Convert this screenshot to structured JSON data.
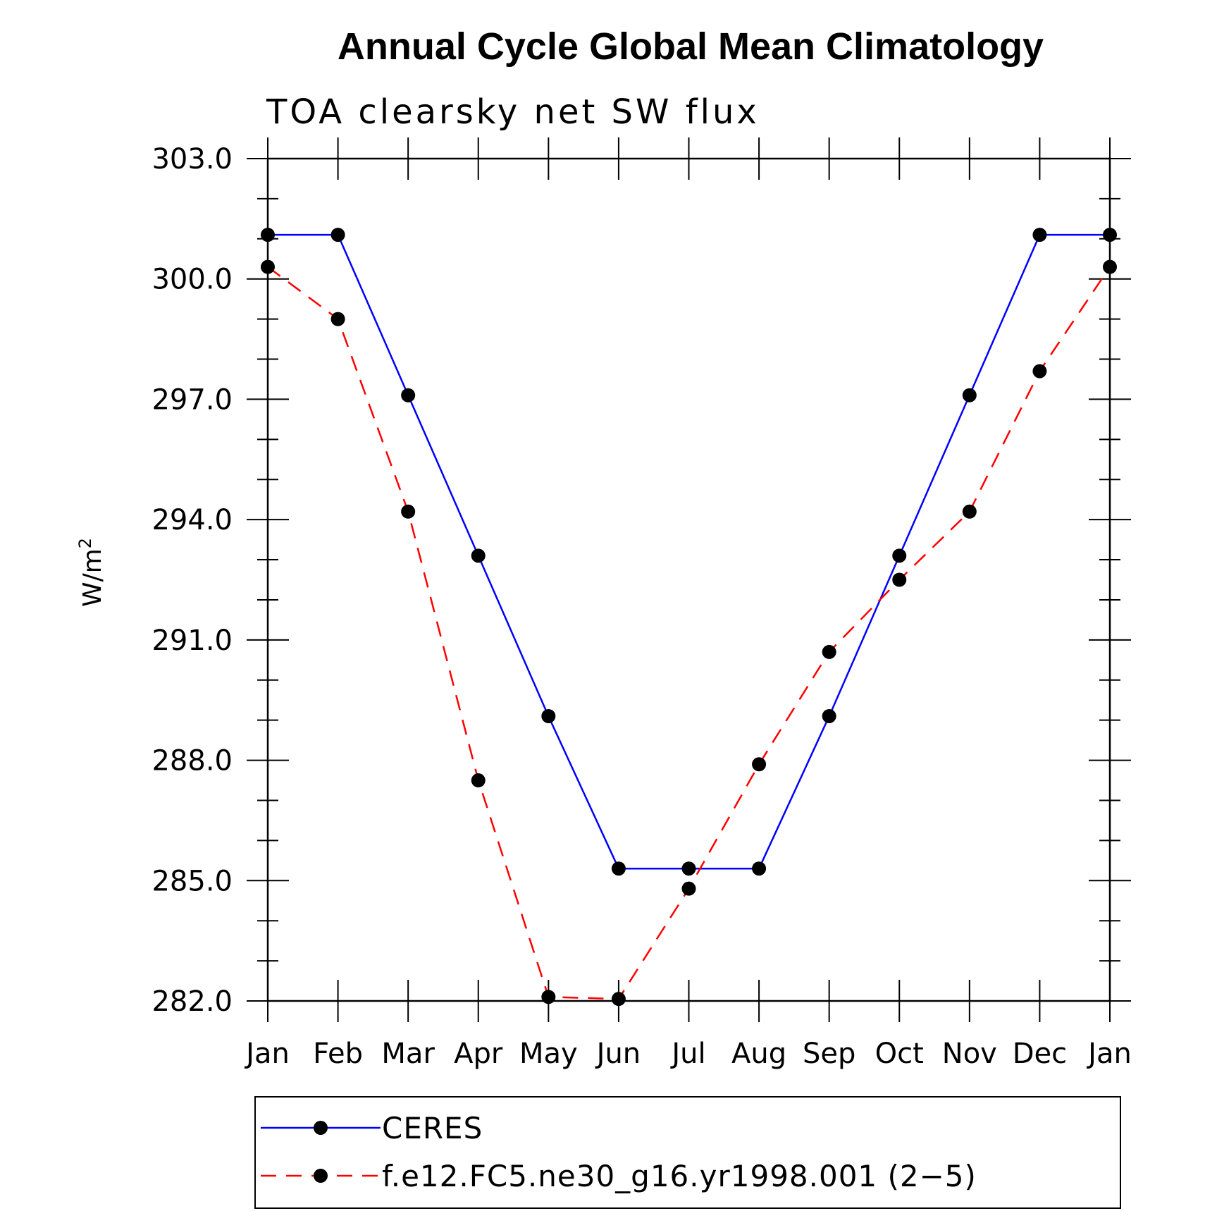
{
  "chart_data": {
    "type": "line",
    "title": "Annual Cycle Global Mean Climatology",
    "subtitle": "TOA clearsky net SW flux",
    "ylabel": "W/m",
    "ylabel_sup": "2",
    "xlabel": "",
    "categories": [
      "Jan",
      "Feb",
      "Mar",
      "Apr",
      "May",
      "Jun",
      "Jul",
      "Aug",
      "Sep",
      "Oct",
      "Nov",
      "Dec",
      "Jan"
    ],
    "ylim": [
      282.0,
      303.0
    ],
    "yticks": [
      "282.0",
      "285.0",
      "288.0",
      "291.0",
      "294.0",
      "297.0",
      "300.0",
      "303.0"
    ],
    "ytick_values": [
      282,
      285,
      288,
      291,
      294,
      297,
      300,
      303
    ],
    "grid": false,
    "legend_position": "bottom",
    "series": [
      {
        "name": "CERES",
        "color": "#0000ff",
        "dash": "solid",
        "marker": "filled-circle",
        "values": [
          301.1,
          301.1,
          297.1,
          293.1,
          289.1,
          285.3,
          285.3,
          285.3,
          289.1,
          293.1,
          297.1,
          301.1,
          301.1
        ]
      },
      {
        "name": "f.e12.FC5.ne30_g16.yr1998.001 (2−5)",
        "color": "#ff0000",
        "dash": "dashed",
        "marker": "filled-circle",
        "values": [
          300.3,
          299.0,
          294.2,
          287.5,
          282.1,
          282.05,
          284.8,
          287.9,
          290.7,
          292.5,
          294.2,
          297.7,
          300.3
        ]
      }
    ]
  }
}
